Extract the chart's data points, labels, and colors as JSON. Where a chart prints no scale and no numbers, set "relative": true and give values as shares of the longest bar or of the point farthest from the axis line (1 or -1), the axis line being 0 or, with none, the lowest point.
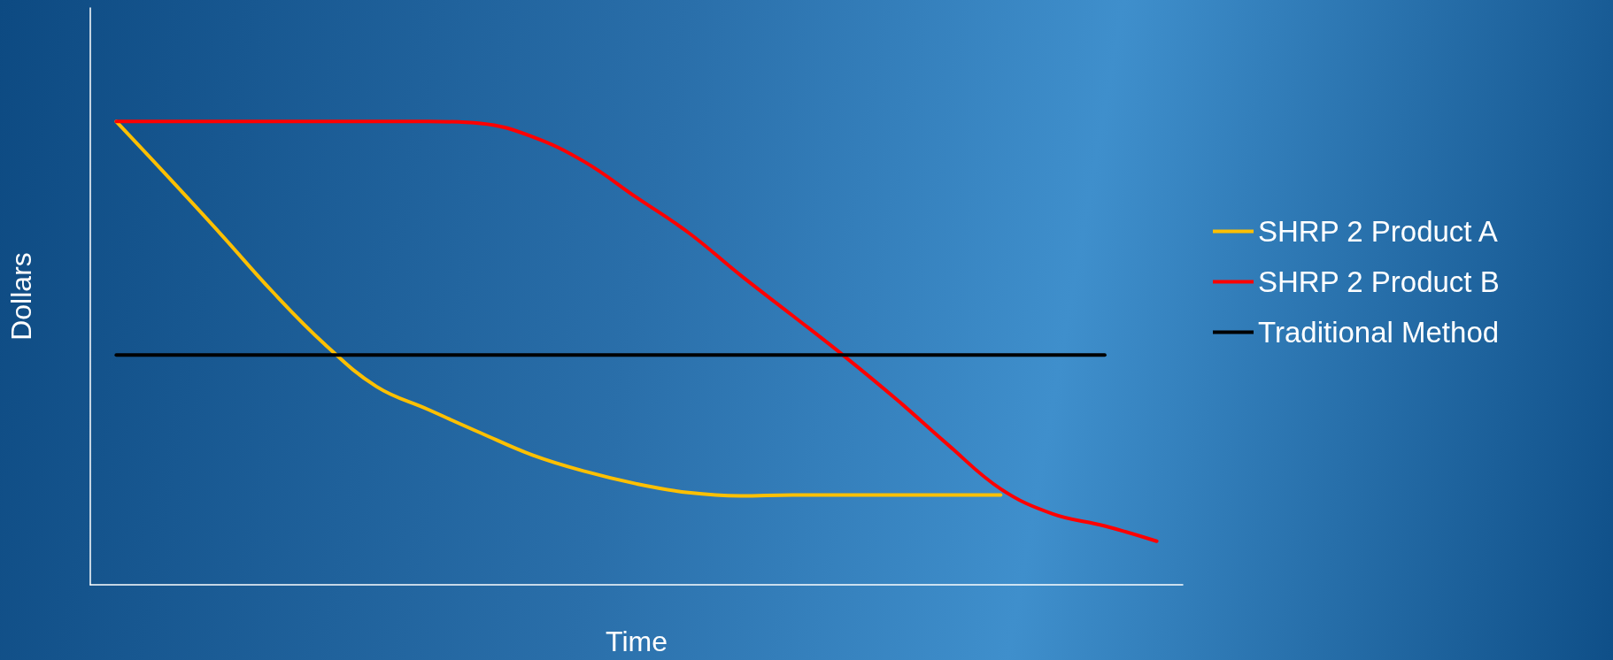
{
  "chart_data": {
    "type": "line",
    "xlabel": "Time",
    "ylabel": "Dollars",
    "relative": true,
    "legend": "right",
    "grid": false,
    "marker": "none",
    "line_style": "solid",
    "categories": [
      null,
      null,
      null,
      null,
      null,
      null,
      null,
      null,
      null,
      null,
      null,
      null,
      null,
      null,
      null,
      null,
      null,
      null,
      null,
      null,
      null
    ],
    "series": [
      {
        "name": "SHRP 2 Product A",
        "color": "#ffc000",
        "values": [
          1.0,
          0.88,
          0.758,
          0.633,
          0.52,
          0.428,
          0.378,
          0.328,
          0.28,
          0.245,
          0.218,
          0.199,
          0.192,
          0.194,
          0.194,
          0.194,
          0.194,
          0.194,
          null,
          null,
          null
        ]
      },
      {
        "name": "SHRP 2 Product B",
        "color": "#ff0000",
        "values": [
          1.0,
          1.0,
          1.0,
          1.0,
          1.0,
          1.0,
          1.0,
          0.996,
          0.967,
          0.913,
          0.836,
          0.76,
          0.668,
          0.581,
          0.493,
          0.4,
          0.301,
          0.207,
          0.153,
          0.127,
          0.094
        ]
      },
      {
        "name": "Traditional Method",
        "color": "#000000",
        "values": [
          0.496,
          0.496,
          0.496,
          0.496,
          0.496,
          0.496,
          0.496,
          0.496,
          0.496,
          0.496,
          0.496,
          0.496,
          0.496,
          0.496,
          0.496,
          0.496,
          0.496,
          0.496,
          0.496,
          0.496,
          null
        ]
      }
    ]
  }
}
